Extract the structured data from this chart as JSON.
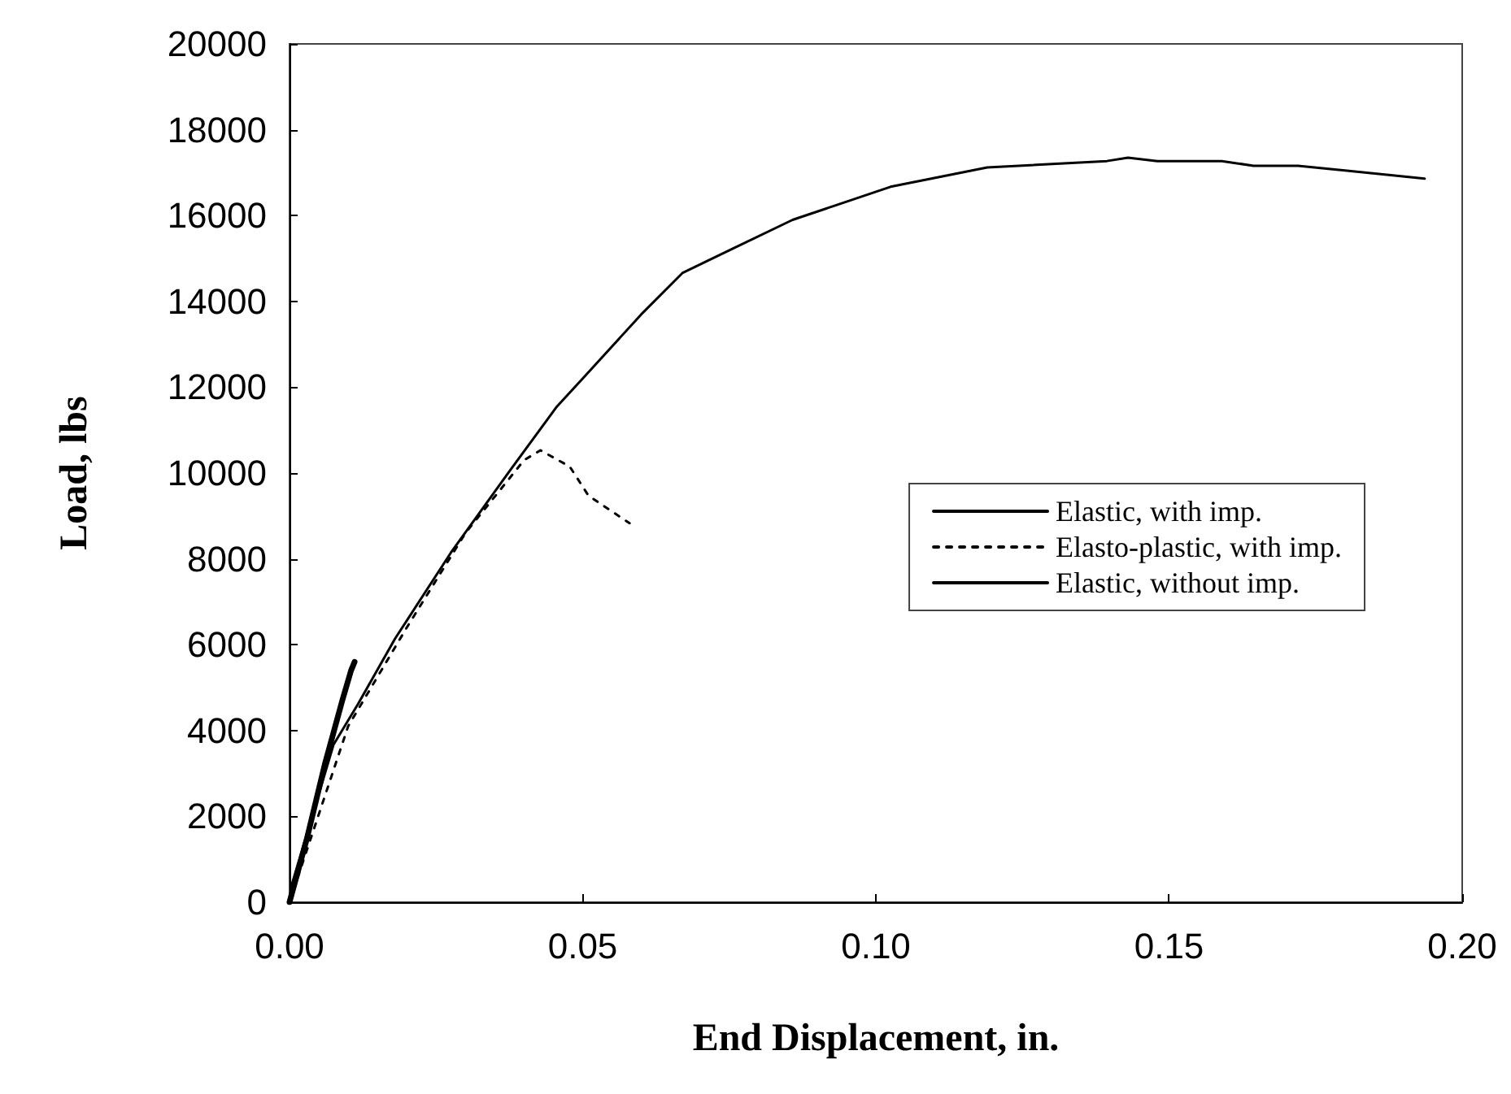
{
  "chart_data": {
    "type": "line",
    "xlabel": "End Displacement, in.",
    "ylabel": "Load, lbs",
    "xlim": [
      0,
      0.2
    ],
    "xticks": [
      {
        "value": 0,
        "label": "0.00"
      },
      {
        "value": 0.05,
        "label": "0.05"
      },
      {
        "value": 0.1,
        "label": "0.10"
      },
      {
        "value": 0.15,
        "label": "0.15"
      },
      {
        "value": 0.2,
        "label": "0.20"
      }
    ],
    "ylim": [
      0,
      20000
    ],
    "yticks": [
      0,
      2000,
      4000,
      6000,
      8000,
      10000,
      12000,
      14000,
      16000,
      18000,
      20000
    ],
    "grid": false,
    "legend": "right",
    "marker": "none",
    "series": [
      {
        "name": "Elastic, with imp.",
        "color": "#000000",
        "line_style": "solid",
        "x": [
          0,
          0.0005,
          0.0075,
          0.0117,
          0.018,
          0.0275,
          0.0375,
          0.0456,
          0.05,
          0.06,
          0.067,
          0.0756,
          0.0858,
          0.1025,
          0.119,
          0.1394,
          0.143,
          0.148,
          0.159,
          0.1644,
          0.172,
          0.18,
          0.1936
        ],
        "values": [
          0,
          460,
          3670,
          4620,
          6140,
          8140,
          10040,
          11550,
          12200,
          13700,
          14660,
          15230,
          15900,
          16670,
          17120,
          17270,
          17350,
          17270,
          17270,
          17160,
          17160,
          17050,
          16860
        ]
      },
      {
        "name": "Elasto-plastic, with imp.",
        "color": "#000000",
        "line_style": "dotted",
        "x": [
          0,
          0.01,
          0.02,
          0.03,
          0.04,
          0.0428,
          0.0478,
          0.051,
          0.058
        ],
        "values": [
          0,
          4100,
          6400,
          8600,
          10300,
          10530,
          10150,
          9470,
          8830
        ]
      },
      {
        "name": "Elastic, without imp.",
        "color": "#000000",
        "line_style": "solid",
        "x": [
          0,
          0.003,
          0.006,
          0.009,
          0.0105,
          0.0111
        ],
        "values": [
          0,
          1500,
          3200,
          4700,
          5400,
          5600
        ]
      }
    ]
  }
}
